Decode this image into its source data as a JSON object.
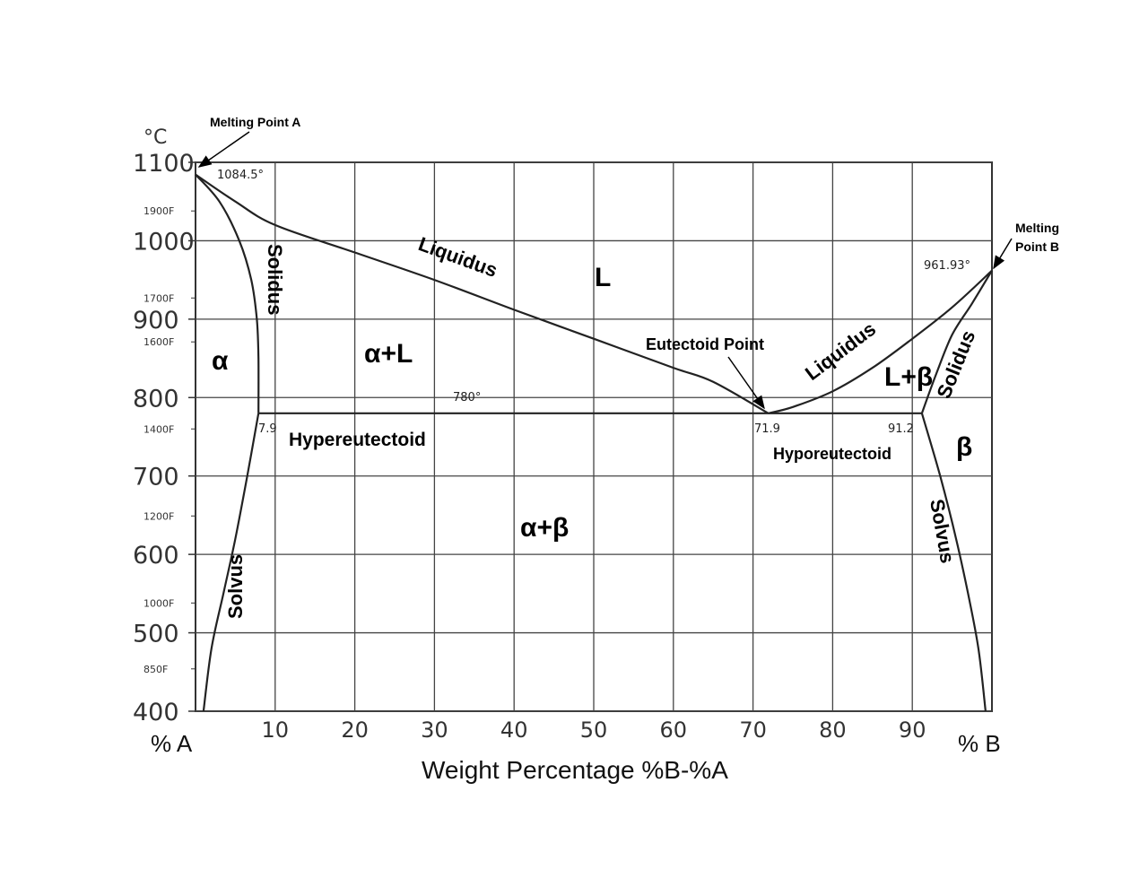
{
  "chart_data": {
    "type": "phase-diagram",
    "xlabel": "Weight Percentage %B-%A",
    "x_end_labels": {
      "left": "% A",
      "right": "% B"
    },
    "xlim": [
      0,
      100
    ],
    "xticks": [
      10,
      20,
      30,
      40,
      50,
      60,
      70,
      80,
      90
    ],
    "y_unit_label": "°C",
    "ylim": [
      400,
      1100
    ],
    "yticks_c": [
      1100,
      1000,
      900,
      800,
      700,
      600,
      500,
      400
    ],
    "yticks_f": [
      {
        "label": "1900F",
        "c": 1038
      },
      {
        "label": "1700F",
        "c": 927
      },
      {
        "label": "1600F",
        "c": 871
      },
      {
        "label": "1400F",
        "c": 760
      },
      {
        "label": "1200F",
        "c": 649
      },
      {
        "label": "1000F",
        "c": 538
      },
      {
        "label": "850F",
        "c": 454
      }
    ],
    "grid": true,
    "key_points": {
      "melting_a": {
        "x": 0,
        "y": 1084.5,
        "label": "1084.5°"
      },
      "melting_b": {
        "x": 100,
        "y": 961.93,
        "label": "961.93°"
      },
      "eutectic_temp_label": "780°",
      "eutectic": {
        "x": 71.9,
        "y": 780,
        "label": "71.9"
      },
      "alpha_max": {
        "x": 7.9,
        "y": 780,
        "label": "7.9"
      },
      "beta_min": {
        "x": 91.2,
        "y": 780,
        "label": "91.2"
      }
    },
    "series": [
      {
        "name": "liquidus-left",
        "points": [
          [
            0,
            1084.5
          ],
          [
            5,
            1050
          ],
          [
            10,
            1020
          ],
          [
            20,
            985
          ],
          [
            30,
            950
          ],
          [
            40,
            912
          ],
          [
            50,
            875
          ],
          [
            60,
            838
          ],
          [
            65,
            820
          ],
          [
            71.9,
            780
          ]
        ]
      },
      {
        "name": "liquidus-right",
        "points": [
          [
            71.9,
            780
          ],
          [
            75,
            788
          ],
          [
            80,
            808
          ],
          [
            85,
            838
          ],
          [
            90,
            875
          ],
          [
            95,
            915
          ],
          [
            100,
            961.93
          ]
        ]
      },
      {
        "name": "solidus-alpha",
        "points": [
          [
            0,
            1084.5
          ],
          [
            3,
            1050
          ],
          [
            5.5,
            1000
          ],
          [
            7,
            950
          ],
          [
            7.7,
            900
          ],
          [
            7.9,
            850
          ],
          [
            7.9,
            780
          ]
        ]
      },
      {
        "name": "solidus-beta",
        "points": [
          [
            91.2,
            780
          ],
          [
            93,
            830
          ],
          [
            95,
            880
          ],
          [
            97.5,
            920
          ],
          [
            100,
            961.93
          ]
        ]
      },
      {
        "name": "eutectic-line",
        "points": [
          [
            7.9,
            780
          ],
          [
            91.2,
            780
          ]
        ]
      },
      {
        "name": "solvus-alpha",
        "points": [
          [
            7.9,
            780
          ],
          [
            6.5,
            700
          ],
          [
            5,
            620
          ],
          [
            3.5,
            550
          ],
          [
            2,
            480
          ],
          [
            1,
            400
          ]
        ]
      },
      {
        "name": "solvus-beta",
        "points": [
          [
            91.2,
            780
          ],
          [
            93.5,
            700
          ],
          [
            95.5,
            620
          ],
          [
            97,
            550
          ],
          [
            98.3,
            480
          ],
          [
            99.2,
            400
          ]
        ]
      }
    ],
    "annotations": {
      "melting_point_a": "Melting Point A",
      "melting_point_b_line1": "Melting",
      "melting_point_b_line2": "Point B",
      "eutectoid_point": "Eutectoid Point",
      "liquidus_left": "Liquidus",
      "liquidus_right": "Liquidus",
      "solidus_left": "Solidus",
      "solidus_right": "Solidus",
      "solvus_left": "Solvus",
      "solvus_right": "Solvus",
      "hypereutectoid": "Hypereutectoid",
      "hypoeutectoid": "Hyporeutectoid"
    },
    "phase_regions": {
      "alpha": "α",
      "alpha_liquid": "α+L",
      "liquid": "L",
      "liquid_beta": "L+β",
      "beta": "β",
      "alpha_beta": "α+β"
    }
  }
}
